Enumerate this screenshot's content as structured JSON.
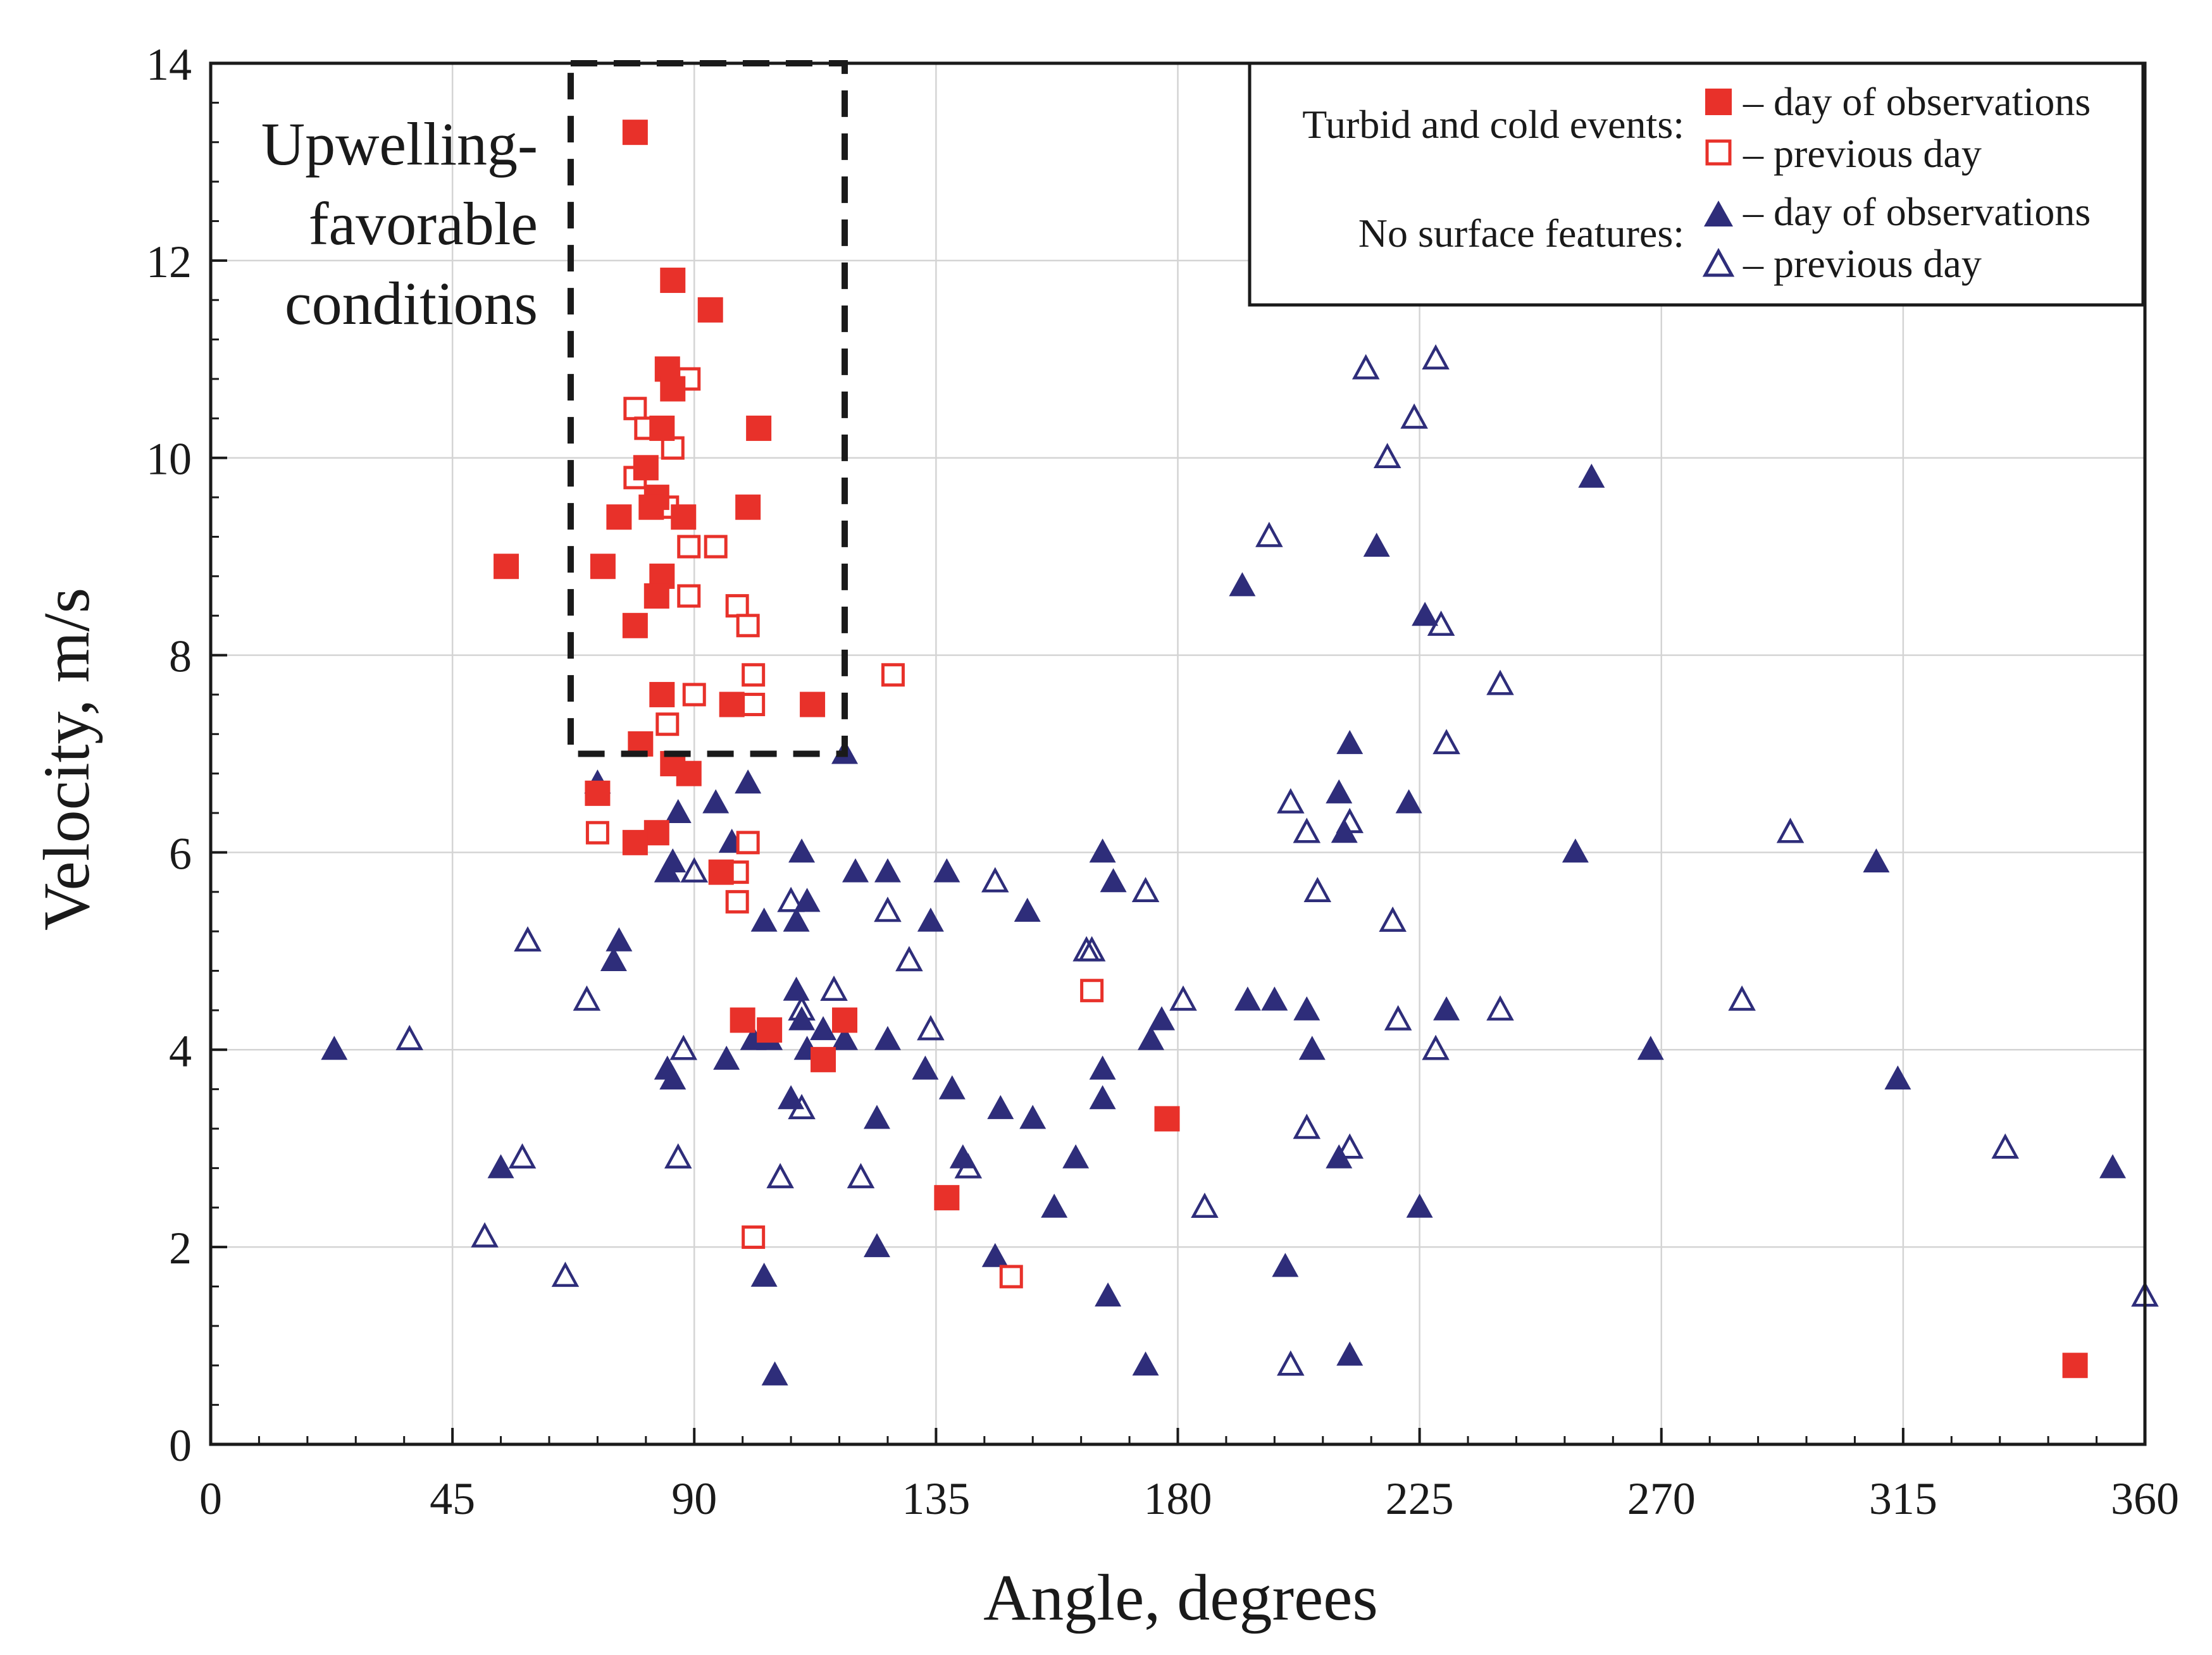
{
  "chart_data": {
    "type": "scatter",
    "xlabel": "Angle, degrees",
    "ylabel": "Velocity, m/s",
    "xlim": [
      0,
      360
    ],
    "ylim": [
      0,
      14
    ],
    "xticks": [
      0,
      45,
      90,
      135,
      180,
      225,
      270,
      315,
      360
    ],
    "yticks": [
      0,
      2,
      4,
      6,
      8,
      10,
      12,
      14
    ],
    "grid": true,
    "annotation": {
      "lines": [
        "Upwelling-",
        "favorable",
        "conditions"
      ],
      "region": {
        "x": [
          67,
          118
        ],
        "y": [
          7,
          14
        ]
      }
    },
    "legend": {
      "position": "top-right",
      "groups": [
        {
          "label": "Turbid and cold events:",
          "entries": [
            "– day of observations",
            "– previous day"
          ]
        },
        {
          "label": "No surface features:",
          "entries": [
            "– day of observations",
            "– previous day"
          ]
        }
      ]
    },
    "colors": {
      "red": "#e8312a",
      "navy": "#2e2d7a",
      "frame": "#1a1a1a"
    },
    "series": [
      {
        "name": "Turbid and cold events – day of observations",
        "marker": "filled-square",
        "points": [
          [
            79,
            13.3
          ],
          [
            86,
            11.8
          ],
          [
            93,
            11.5
          ],
          [
            85,
            10.9
          ],
          [
            86,
            10.7
          ],
          [
            84,
            10.3
          ],
          [
            102,
            10.3
          ],
          [
            81,
            9.9
          ],
          [
            83,
            9.6
          ],
          [
            82,
            9.5
          ],
          [
            100,
            9.5
          ],
          [
            88,
            9.4
          ],
          [
            76,
            9.4
          ],
          [
            55,
            8.9
          ],
          [
            73,
            8.9
          ],
          [
            84,
            8.8
          ],
          [
            83,
            8.6
          ],
          [
            79,
            8.3
          ],
          [
            84,
            7.6
          ],
          [
            97,
            7.5
          ],
          [
            112,
            7.5
          ],
          [
            80,
            7.1
          ],
          [
            86,
            6.9
          ],
          [
            89,
            6.8
          ],
          [
            72,
            6.6
          ],
          [
            83,
            6.2
          ],
          [
            79,
            6.1
          ],
          [
            95,
            5.8
          ],
          [
            99,
            4.3
          ],
          [
            104,
            4.2
          ],
          [
            118,
            4.3
          ],
          [
            114,
            3.9
          ],
          [
            178,
            3.3
          ],
          [
            137,
            2.5
          ],
          [
            347,
            0.8
          ]
        ]
      },
      {
        "name": "Turbid and cold events – previous day",
        "marker": "open-square",
        "points": [
          [
            89,
            10.8
          ],
          [
            79,
            10.5
          ],
          [
            81,
            10.3
          ],
          [
            86,
            10.1
          ],
          [
            79,
            9.8
          ],
          [
            85,
            9.5
          ],
          [
            94,
            9.1
          ],
          [
            89,
            9.1
          ],
          [
            89,
            8.6
          ],
          [
            98,
            8.5
          ],
          [
            100,
            8.3
          ],
          [
            101,
            7.8
          ],
          [
            127,
            7.8
          ],
          [
            90,
            7.6
          ],
          [
            101,
            7.5
          ],
          [
            85,
            7.3
          ],
          [
            72,
            6.2
          ],
          [
            100,
            6.1
          ],
          [
            98,
            5.8
          ],
          [
            98,
            5.5
          ],
          [
            164,
            4.6
          ],
          [
            101,
            2.1
          ],
          [
            149,
            1.7
          ]
        ]
      },
      {
        "name": "No surface features – day of observations",
        "marker": "filled-triangle",
        "points": [
          [
            72,
            6.7
          ],
          [
            118,
            7
          ],
          [
            100,
            6.7
          ],
          [
            94,
            6.5
          ],
          [
            87,
            6.4
          ],
          [
            97,
            6.1
          ],
          [
            110,
            6
          ],
          [
            85,
            5.8
          ],
          [
            86,
            5.9
          ],
          [
            120,
            5.8
          ],
          [
            126,
            5.8
          ],
          [
            137,
            5.8
          ],
          [
            111,
            5.5
          ],
          [
            103,
            5.3
          ],
          [
            109,
            5.3
          ],
          [
            134,
            5.3
          ],
          [
            152,
            5.4
          ],
          [
            76,
            5.1
          ],
          [
            75,
            4.9
          ],
          [
            109,
            4.6
          ],
          [
            118,
            4.1
          ],
          [
            110,
            4.3
          ],
          [
            114,
            4.2
          ],
          [
            111,
            4
          ],
          [
            101,
            4.1
          ],
          [
            104,
            4.1
          ],
          [
            96,
            3.9
          ],
          [
            85,
            3.8
          ],
          [
            86,
            3.7
          ],
          [
            108,
            3.5
          ],
          [
            133,
            3.8
          ],
          [
            126,
            4.1
          ],
          [
            138,
            3.6
          ],
          [
            147,
            3.4
          ],
          [
            153,
            3.3
          ],
          [
            124,
            3.3
          ],
          [
            140,
            2.9
          ],
          [
            161,
            2.9
          ],
          [
            54,
            2.8
          ],
          [
            124,
            2
          ],
          [
            146,
            1.9
          ],
          [
            157,
            2.4
          ],
          [
            103,
            1.7
          ],
          [
            167,
            1.5
          ],
          [
            105,
            0.7
          ],
          [
            174,
            0.8
          ],
          [
            166,
            6
          ],
          [
            168,
            5.7
          ],
          [
            166,
            3.8
          ],
          [
            166,
            3.5
          ],
          [
            175,
            4.1
          ],
          [
            177,
            4.3
          ],
          [
            23,
            4
          ],
          [
            192,
            8.7
          ],
          [
            193,
            4.5
          ],
          [
            198,
            4.5
          ],
          [
            204,
            4.4
          ],
          [
            205,
            4
          ],
          [
            200,
            1.8
          ],
          [
            210,
            2.9
          ],
          [
            212,
            0.9
          ],
          [
            210,
            6.6
          ],
          [
            211,
            6.2
          ],
          [
            212,
            7.1
          ],
          [
            217,
            9.1
          ],
          [
            223,
            6.5
          ],
          [
            226,
            8.4
          ],
          [
            225,
            2.4
          ],
          [
            230,
            4.4
          ],
          [
            257,
            9.8
          ],
          [
            254,
            6
          ],
          [
            268,
            4
          ],
          [
            310,
            5.9
          ],
          [
            314,
            3.7
          ],
          [
            354,
            2.8
          ]
        ]
      },
      {
        "name": "No surface features – previous day",
        "marker": "open-triangle",
        "points": [
          [
            37,
            4.1
          ],
          [
            59,
            5.1
          ],
          [
            70,
            4.5
          ],
          [
            58,
            2.9
          ],
          [
            51,
            2.1
          ],
          [
            66,
            1.7
          ],
          [
            88,
            4
          ],
          [
            87,
            2.9
          ],
          [
            90,
            5.8
          ],
          [
            108,
            5.5
          ],
          [
            116,
            4.6
          ],
          [
            110,
            4.4
          ],
          [
            110,
            3.4
          ],
          [
            106,
            2.7
          ],
          [
            121,
            2.7
          ],
          [
            126,
            5.4
          ],
          [
            130,
            4.9
          ],
          [
            134,
            4.2
          ],
          [
            141,
            2.8
          ],
          [
            146,
            5.7
          ],
          [
            163,
            5
          ],
          [
            164,
            5
          ],
          [
            174,
            5.6
          ],
          [
            181,
            4.5
          ],
          [
            185,
            2.4
          ],
          [
            197,
            9.2
          ],
          [
            201,
            6.5
          ],
          [
            204,
            6.2
          ],
          [
            212,
            6.3
          ],
          [
            204,
            3.2
          ],
          [
            212,
            3
          ],
          [
            206,
            5.6
          ],
          [
            201,
            0.8
          ],
          [
            215,
            10.9
          ],
          [
            219,
            10
          ],
          [
            220,
            5.3
          ],
          [
            221,
            4.3
          ],
          [
            224,
            10.4
          ],
          [
            228,
            11
          ],
          [
            229,
            8.3
          ],
          [
            228,
            4
          ],
          [
            230,
            7.1
          ],
          [
            240,
            7.7
          ],
          [
            240,
            4.4
          ],
          [
            285,
            4.5
          ],
          [
            294,
            6.2
          ],
          [
            334,
            3
          ],
          [
            360,
            1.5
          ]
        ]
      }
    ]
  }
}
